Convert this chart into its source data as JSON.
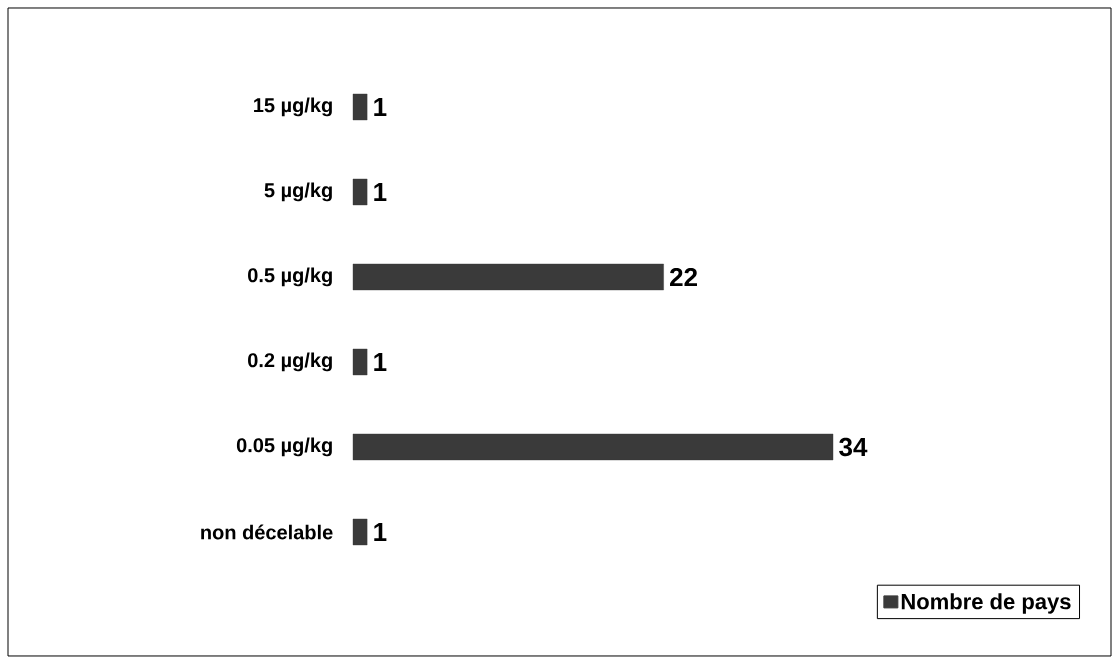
{
  "chart_data": {
    "type": "bar",
    "orientation": "horizontal",
    "categories": [
      "15 µg/kg",
      "5 µg/kg",
      "0.5 µg/kg",
      "0.2 µg/kg",
      "0.05 µg/kg",
      "non décelable"
    ],
    "series": [
      {
        "name": "Nombre de  pays",
        "color": "#3a3a3a",
        "values": [
          1,
          1,
          22,
          1,
          34,
          1
        ]
      }
    ],
    "data_labels": true,
    "legend": "bottom right"
  }
}
